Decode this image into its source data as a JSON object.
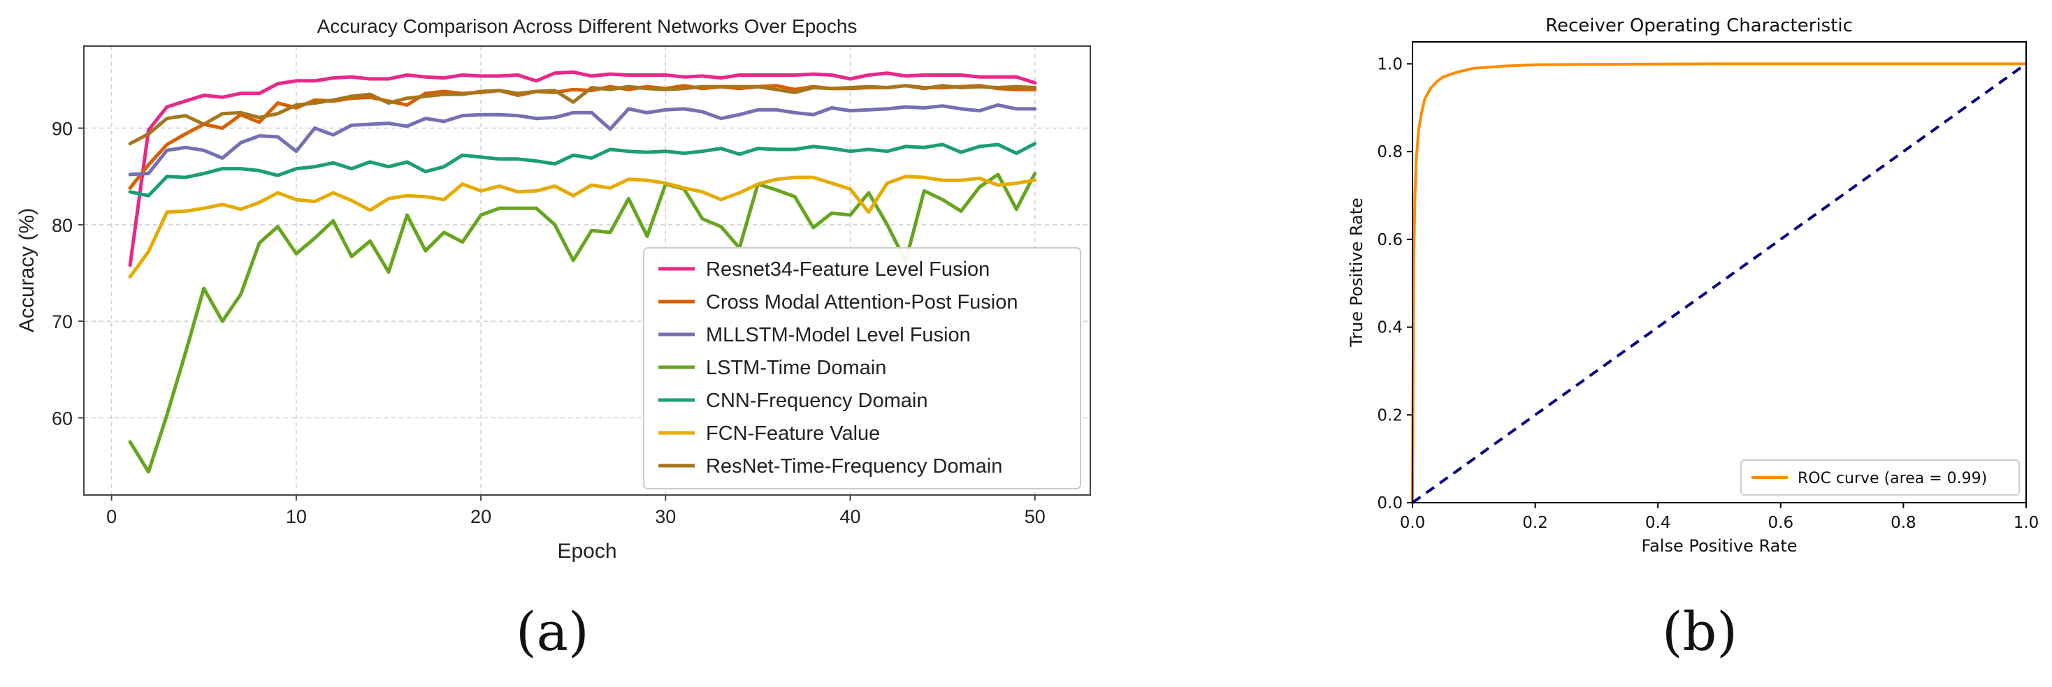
{
  "chart_data": [
    {
      "id": "a",
      "type": "line",
      "title": "Accuracy Comparison Across Different Networks Over Epochs",
      "xlabel": "Epoch",
      "ylabel": "Accuracy (%)",
      "xlim": [
        -1.5,
        53
      ],
      "ylim": [
        52,
        98.5
      ],
      "xticks": [
        0,
        10,
        20,
        30,
        40,
        50
      ],
      "yticks": [
        60,
        70,
        80,
        90
      ],
      "grid": true,
      "legend": "lower-right",
      "x": [
        1,
        2,
        3,
        4,
        5,
        6,
        7,
        8,
        9,
        10,
        11,
        12,
        13,
        14,
        15,
        16,
        17,
        18,
        19,
        20,
        21,
        22,
        23,
        24,
        25,
        26,
        27,
        28,
        29,
        30,
        31,
        32,
        33,
        34,
        35,
        36,
        37,
        38,
        39,
        40,
        41,
        42,
        43,
        44,
        45,
        46,
        47,
        48,
        49,
        50
      ],
      "series": [
        {
          "name": "Resnet34-Feature Level Fusion",
          "color": "#e7298a",
          "values": [
            75.8,
            89.8,
            92.2,
            92.8,
            93.4,
            93.2,
            93.6,
            93.6,
            94.6,
            94.9,
            94.9,
            95.2,
            95.3,
            95.1,
            95.1,
            95.5,
            95.3,
            95.2,
            95.5,
            95.4,
            95.4,
            95.5,
            94.9,
            95.7,
            95.8,
            95.4,
            95.6,
            95.5,
            95.5,
            95.5,
            95.3,
            95.4,
            95.2,
            95.5,
            95.5,
            95.5,
            95.5,
            95.6,
            95.5,
            95.1,
            95.5,
            95.7,
            95.4,
            95.5,
            95.5,
            95.5,
            95.3,
            95.3,
            95.3,
            94.7
          ]
        },
        {
          "name": "Cross Modal Attention-Post Fusion",
          "color": "#d95f02",
          "values": [
            83.8,
            86.2,
            88.3,
            89.4,
            90.4,
            90.0,
            91.4,
            90.6,
            92.6,
            92.1,
            92.9,
            92.8,
            93.1,
            93.2,
            92.8,
            92.4,
            93.6,
            93.8,
            93.6,
            93.7,
            93.9,
            93.4,
            93.8,
            93.7,
            94.0,
            93.9,
            94.3,
            94.0,
            94.3,
            94.1,
            94.4,
            94.1,
            94.3,
            94.1,
            94.3,
            94.4,
            94.0,
            94.3,
            94.1,
            94.1,
            94.2,
            94.2,
            94.4,
            94.2,
            94.2,
            94.3,
            94.4,
            94.1,
            94.0,
            94.0
          ]
        },
        {
          "name": "MLLSTM-Model Level Fusion",
          "color": "#7570b3",
          "values": [
            85.2,
            85.3,
            87.7,
            88.0,
            87.7,
            86.9,
            88.5,
            89.2,
            89.1,
            87.6,
            90.0,
            89.3,
            90.3,
            90.4,
            90.5,
            90.2,
            91.0,
            90.7,
            91.3,
            91.4,
            91.4,
            91.3,
            91.0,
            91.1,
            91.6,
            91.6,
            89.9,
            92.0,
            91.6,
            91.9,
            92.0,
            91.7,
            91.0,
            91.4,
            91.9,
            91.9,
            91.6,
            91.4,
            92.1,
            91.8,
            91.9,
            92.0,
            92.2,
            92.1,
            92.3,
            92.0,
            91.8,
            92.4,
            92.0,
            92.0
          ]
        },
        {
          "name": "LSTM-Time Domain",
          "color": "#66a61e",
          "values": [
            57.5,
            54.4,
            60.3,
            66.7,
            73.4,
            70.0,
            72.8,
            78.1,
            79.8,
            77.0,
            78.6,
            80.4,
            76.7,
            78.3,
            75.1,
            81.0,
            77.3,
            79.2,
            78.2,
            81.0,
            81.7,
            81.7,
            81.7,
            80.0,
            76.3,
            79.4,
            79.2,
            82.7,
            78.8,
            84.2,
            83.7,
            80.6,
            79.8,
            77.6,
            84.2,
            83.6,
            82.9,
            79.7,
            81.2,
            81.0,
            83.3,
            80.0,
            76.2,
            83.5,
            82.6,
            81.4,
            83.9,
            85.2,
            81.6,
            85.3
          ]
        },
        {
          "name": "CNN-Frequency Domain",
          "color": "#1b9e77",
          "values": [
            83.4,
            83.0,
            85.0,
            84.9,
            85.3,
            85.8,
            85.8,
            85.6,
            85.1,
            85.8,
            86.0,
            86.4,
            85.8,
            86.5,
            86.0,
            86.5,
            85.5,
            86.0,
            87.2,
            87.0,
            86.8,
            86.8,
            86.6,
            86.3,
            87.2,
            86.9,
            87.8,
            87.6,
            87.5,
            87.6,
            87.4,
            87.6,
            87.9,
            87.3,
            87.9,
            87.8,
            87.8,
            88.1,
            87.9,
            87.6,
            87.8,
            87.6,
            88.1,
            88.0,
            88.3,
            87.5,
            88.1,
            88.3,
            87.4,
            88.4
          ]
        },
        {
          "name": "FCN-Feature Value",
          "color": "#e6ab02",
          "values": [
            74.6,
            77.2,
            81.3,
            81.4,
            81.7,
            82.1,
            81.6,
            82.3,
            83.3,
            82.6,
            82.4,
            83.3,
            82.5,
            81.5,
            82.7,
            83.0,
            82.9,
            82.6,
            84.2,
            83.5,
            84.0,
            83.4,
            83.5,
            84.0,
            83.0,
            84.1,
            83.8,
            84.7,
            84.6,
            84.3,
            83.8,
            83.4,
            82.6,
            83.3,
            84.2,
            84.7,
            84.9,
            84.9,
            84.3,
            83.7,
            81.3,
            84.3,
            85.0,
            84.9,
            84.6,
            84.6,
            84.8,
            84.1,
            84.3,
            84.6
          ]
        },
        {
          "name": "ResNet-Time-Frequency Domain",
          "color": "#a6761d",
          "values": [
            88.4,
            89.4,
            91.0,
            91.3,
            90.4,
            91.5,
            91.6,
            91.1,
            91.5,
            92.4,
            92.6,
            92.9,
            93.3,
            93.5,
            92.6,
            93.1,
            93.3,
            93.5,
            93.5,
            93.8,
            93.9,
            93.6,
            93.8,
            93.9,
            92.7,
            94.2,
            94.0,
            94.3,
            94.1,
            94.0,
            94.1,
            94.3,
            94.3,
            94.3,
            94.3,
            94.0,
            93.7,
            94.2,
            94.1,
            94.2,
            94.3,
            94.2,
            94.4,
            94.1,
            94.4,
            94.2,
            94.3,
            94.2,
            94.3,
            94.2
          ]
        }
      ]
    },
    {
      "id": "b",
      "type": "line",
      "title": "Receiver Operating Characteristic",
      "xlabel": "False Positive Rate",
      "ylabel": "True Positive Rate",
      "xlim": [
        0,
        1
      ],
      "ylim": [
        0,
        1.05
      ],
      "xticks": [
        "0.0",
        "0.2",
        "0.4",
        "0.6",
        "0.8",
        "1.0"
      ],
      "yticks": [
        "0.0",
        "0.2",
        "0.4",
        "0.6",
        "0.8",
        "1.0"
      ],
      "grid": false,
      "legend": "lower-right",
      "series": [
        {
          "name": "ROC curve (area = 0.99)",
          "color": "#ff8c00",
          "style": "solid",
          "points": [
            [
              0,
              0
            ],
            [
              0.001,
              0.3
            ],
            [
              0.002,
              0.55
            ],
            [
              0.004,
              0.7
            ],
            [
              0.006,
              0.78
            ],
            [
              0.01,
              0.85
            ],
            [
              0.015,
              0.89
            ],
            [
              0.02,
              0.92
            ],
            [
              0.03,
              0.945
            ],
            [
              0.04,
              0.96
            ],
            [
              0.05,
              0.97
            ],
            [
              0.07,
              0.98
            ],
            [
              0.1,
              0.99
            ],
            [
              0.15,
              0.995
            ],
            [
              0.2,
              0.998
            ],
            [
              0.3,
              0.999
            ],
            [
              0.5,
              1.0
            ],
            [
              0.7,
              1.0
            ],
            [
              1.0,
              1.0
            ]
          ]
        },
        {
          "name": "",
          "color": "#000080",
          "style": "dashed",
          "points": [
            [
              0,
              0
            ],
            [
              1,
              1
            ]
          ]
        }
      ]
    }
  ],
  "panel_labels": [
    "(a)",
    "(b)"
  ]
}
